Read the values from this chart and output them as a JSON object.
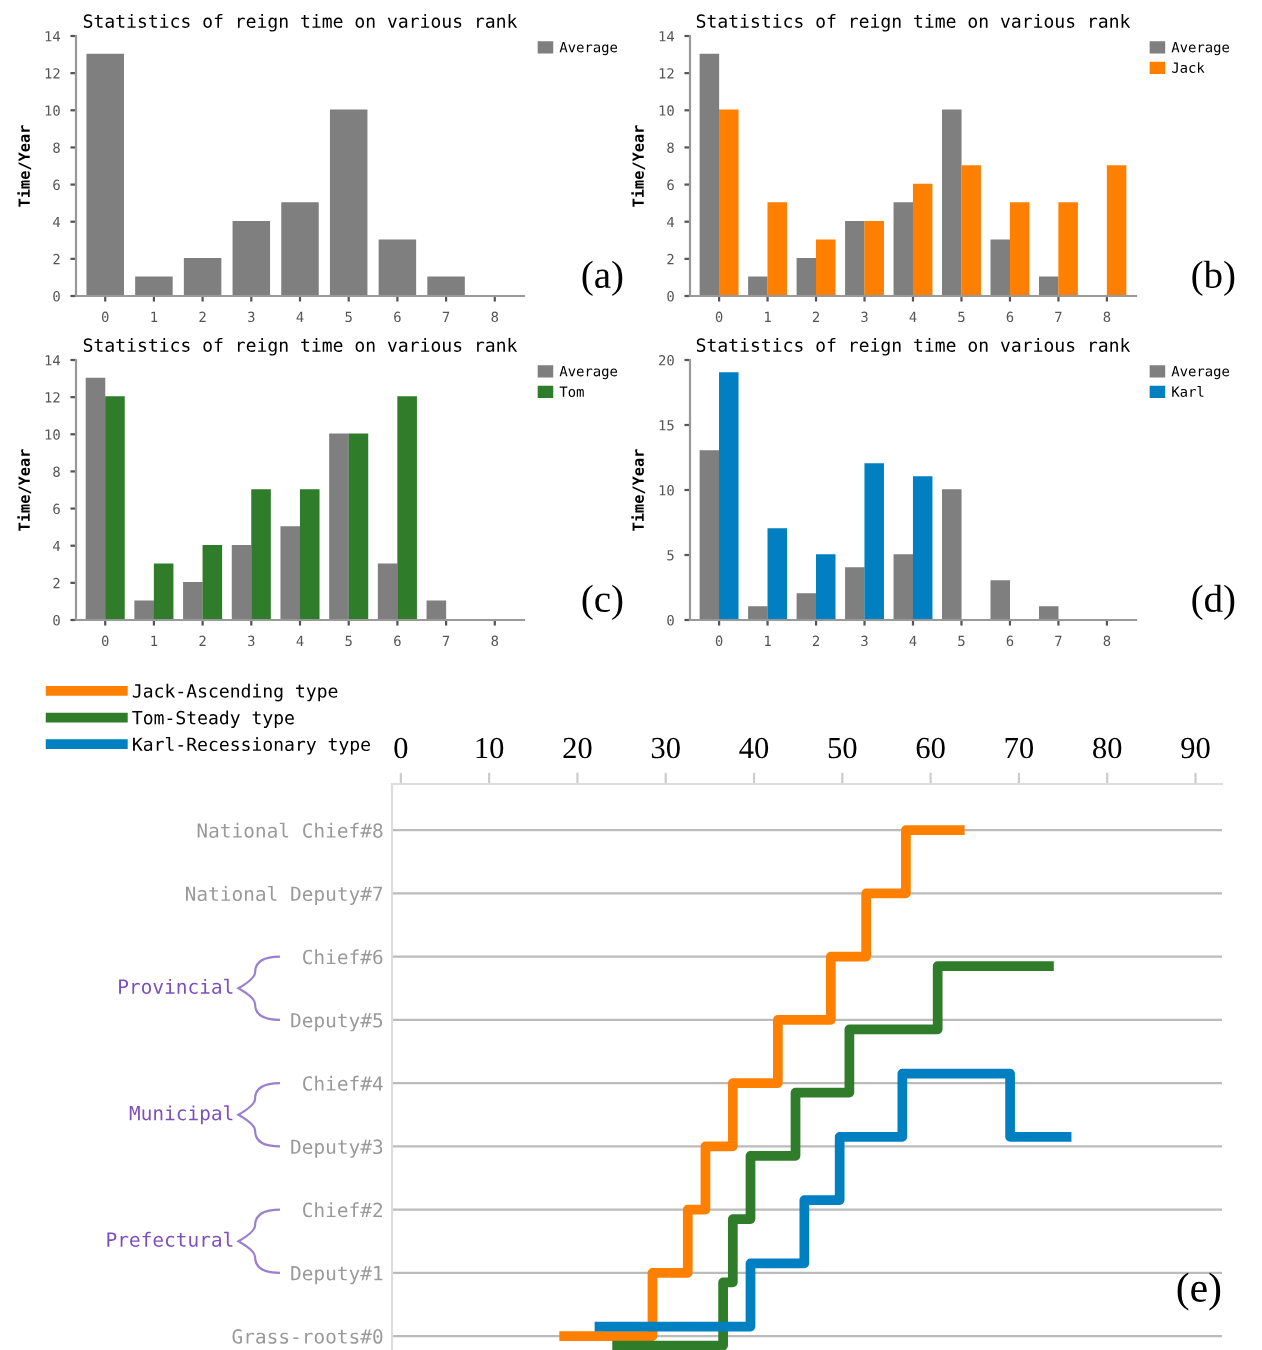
{
  "chart_data": [
    {
      "type": "bar",
      "title": "Statistics of reign time on various rank",
      "ylabel": "Time/Year",
      "categories": [
        "0",
        "1",
        "2",
        "3",
        "4",
        "5",
        "6",
        "7",
        "8"
      ],
      "ylim": [
        0,
        14
      ],
      "yticks": [
        0,
        2,
        4,
        6,
        8,
        10,
        12,
        14
      ],
      "legend": "top right",
      "annotations": [
        "(a)"
      ],
      "series": [
        {
          "name": "Average",
          "color": "#7f7f7f",
          "values": [
            13,
            1,
            2,
            4,
            5,
            10,
            3,
            1,
            0
          ]
        }
      ]
    },
    {
      "type": "bar",
      "title": "Statistics of reign time on various rank",
      "ylabel": "Time/Year",
      "categories": [
        "0",
        "1",
        "2",
        "3",
        "4",
        "5",
        "6",
        "7",
        "8"
      ],
      "ylim": [
        0,
        14
      ],
      "yticks": [
        0,
        2,
        4,
        6,
        8,
        10,
        12,
        14
      ],
      "legend": "top right",
      "annotations": [
        "(b)"
      ],
      "series": [
        {
          "name": "Average",
          "color": "#7f7f7f",
          "values": [
            13,
            1,
            2,
            4,
            5,
            10,
            3,
            1,
            0
          ]
        },
        {
          "name": "Jack",
          "color": "#ff8000",
          "values": [
            10,
            5,
            3,
            4,
            6,
            7,
            5,
            5,
            7
          ]
        }
      ]
    },
    {
      "type": "bar",
      "title": "Statistics of reign time on various rank",
      "ylabel": "Time/Year",
      "categories": [
        "0",
        "1",
        "2",
        "3",
        "4",
        "5",
        "6",
        "7",
        "8"
      ],
      "ylim": [
        0,
        14
      ],
      "yticks": [
        0,
        2,
        4,
        6,
        8,
        10,
        12,
        14
      ],
      "legend": "top right",
      "annotations": [
        "(c)"
      ],
      "series": [
        {
          "name": "Average",
          "color": "#7f7f7f",
          "values": [
            13,
            1,
            2,
            4,
            5,
            10,
            3,
            1,
            0
          ]
        },
        {
          "name": "Tom",
          "color": "#2f7d2a",
          "values": [
            12,
            3,
            4,
            7,
            7,
            10,
            12,
            0,
            0
          ]
        }
      ]
    },
    {
      "type": "bar",
      "title": "Statistics of reign time on various rank",
      "ylabel": "Time/Year",
      "categories": [
        "0",
        "1",
        "2",
        "3",
        "4",
        "5",
        "6",
        "7",
        "8"
      ],
      "ylim": [
        0,
        20
      ],
      "yticks": [
        0,
        5,
        10,
        15,
        20
      ],
      "legend": "top right",
      "annotations": [
        "(d)"
      ],
      "series": [
        {
          "name": "Average",
          "color": "#7f7f7f",
          "values": [
            13,
            1,
            2,
            4,
            5,
            10,
            3,
            1,
            0
          ]
        },
        {
          "name": "Karl",
          "color": "#0080c0",
          "values": [
            19,
            7,
            5,
            12,
            11,
            0,
            0,
            0,
            0
          ]
        }
      ]
    },
    {
      "type": "step",
      "xlim": [
        -1,
        93
      ],
      "xticks": [
        0,
        10,
        20,
        30,
        40,
        50,
        60,
        70,
        80,
        90
      ],
      "ylim": [
        -0.22,
        8.73
      ],
      "yticks": [
        {
          "value": 0,
          "label": "Grass-roots#0"
        },
        {
          "value": 1,
          "label": "Deputy#1"
        },
        {
          "value": 2,
          "label": "Chief#2"
        },
        {
          "value": 3,
          "label": "Deputy#3"
        },
        {
          "value": 4,
          "label": "Chief#4"
        },
        {
          "value": 5,
          "label": "Deputy#5"
        },
        {
          "value": 6,
          "label": "Chief#6"
        },
        {
          "value": 7,
          "label": "National Deputy#7"
        },
        {
          "value": 8,
          "label": "National Chief#8"
        }
      ],
      "grid": "y",
      "legend": "top left",
      "annotations": [
        "Provincial",
        "Municipal",
        "Prefectural",
        "(e)"
      ],
      "series": [
        {
          "name": "Jack-Ascending type",
          "color": "#ff8000",
          "x": [
            18.5,
            28.5,
            32.5,
            34.5,
            37.6,
            42.7,
            48.7,
            52.7,
            57.2,
            63.3
          ],
          "values": [
            0,
            1,
            2,
            3,
            4,
            5,
            6,
            7,
            8,
            8
          ]
        },
        {
          "name": "Tom-Steady type",
          "color": "#2f7d2a",
          "x": [
            24.5,
            36.5,
            37.6,
            39.6,
            44.7,
            50.8,
            60.8,
            73.4
          ],
          "values": [
            -0.15,
            0.85,
            1.85,
            2.85,
            3.85,
            4.85,
            5.85,
            5.85
          ]
        },
        {
          "name": "Karl-Recessionary type",
          "color": "#0080c0",
          "x": [
            22.5,
            39.6,
            45.7,
            49.7,
            56.8,
            69.0,
            75.4
          ],
          "values": [
            0.15,
            1.15,
            2.15,
            3.15,
            4.15,
            3.15,
            3.15
          ]
        }
      ]
    }
  ]
}
